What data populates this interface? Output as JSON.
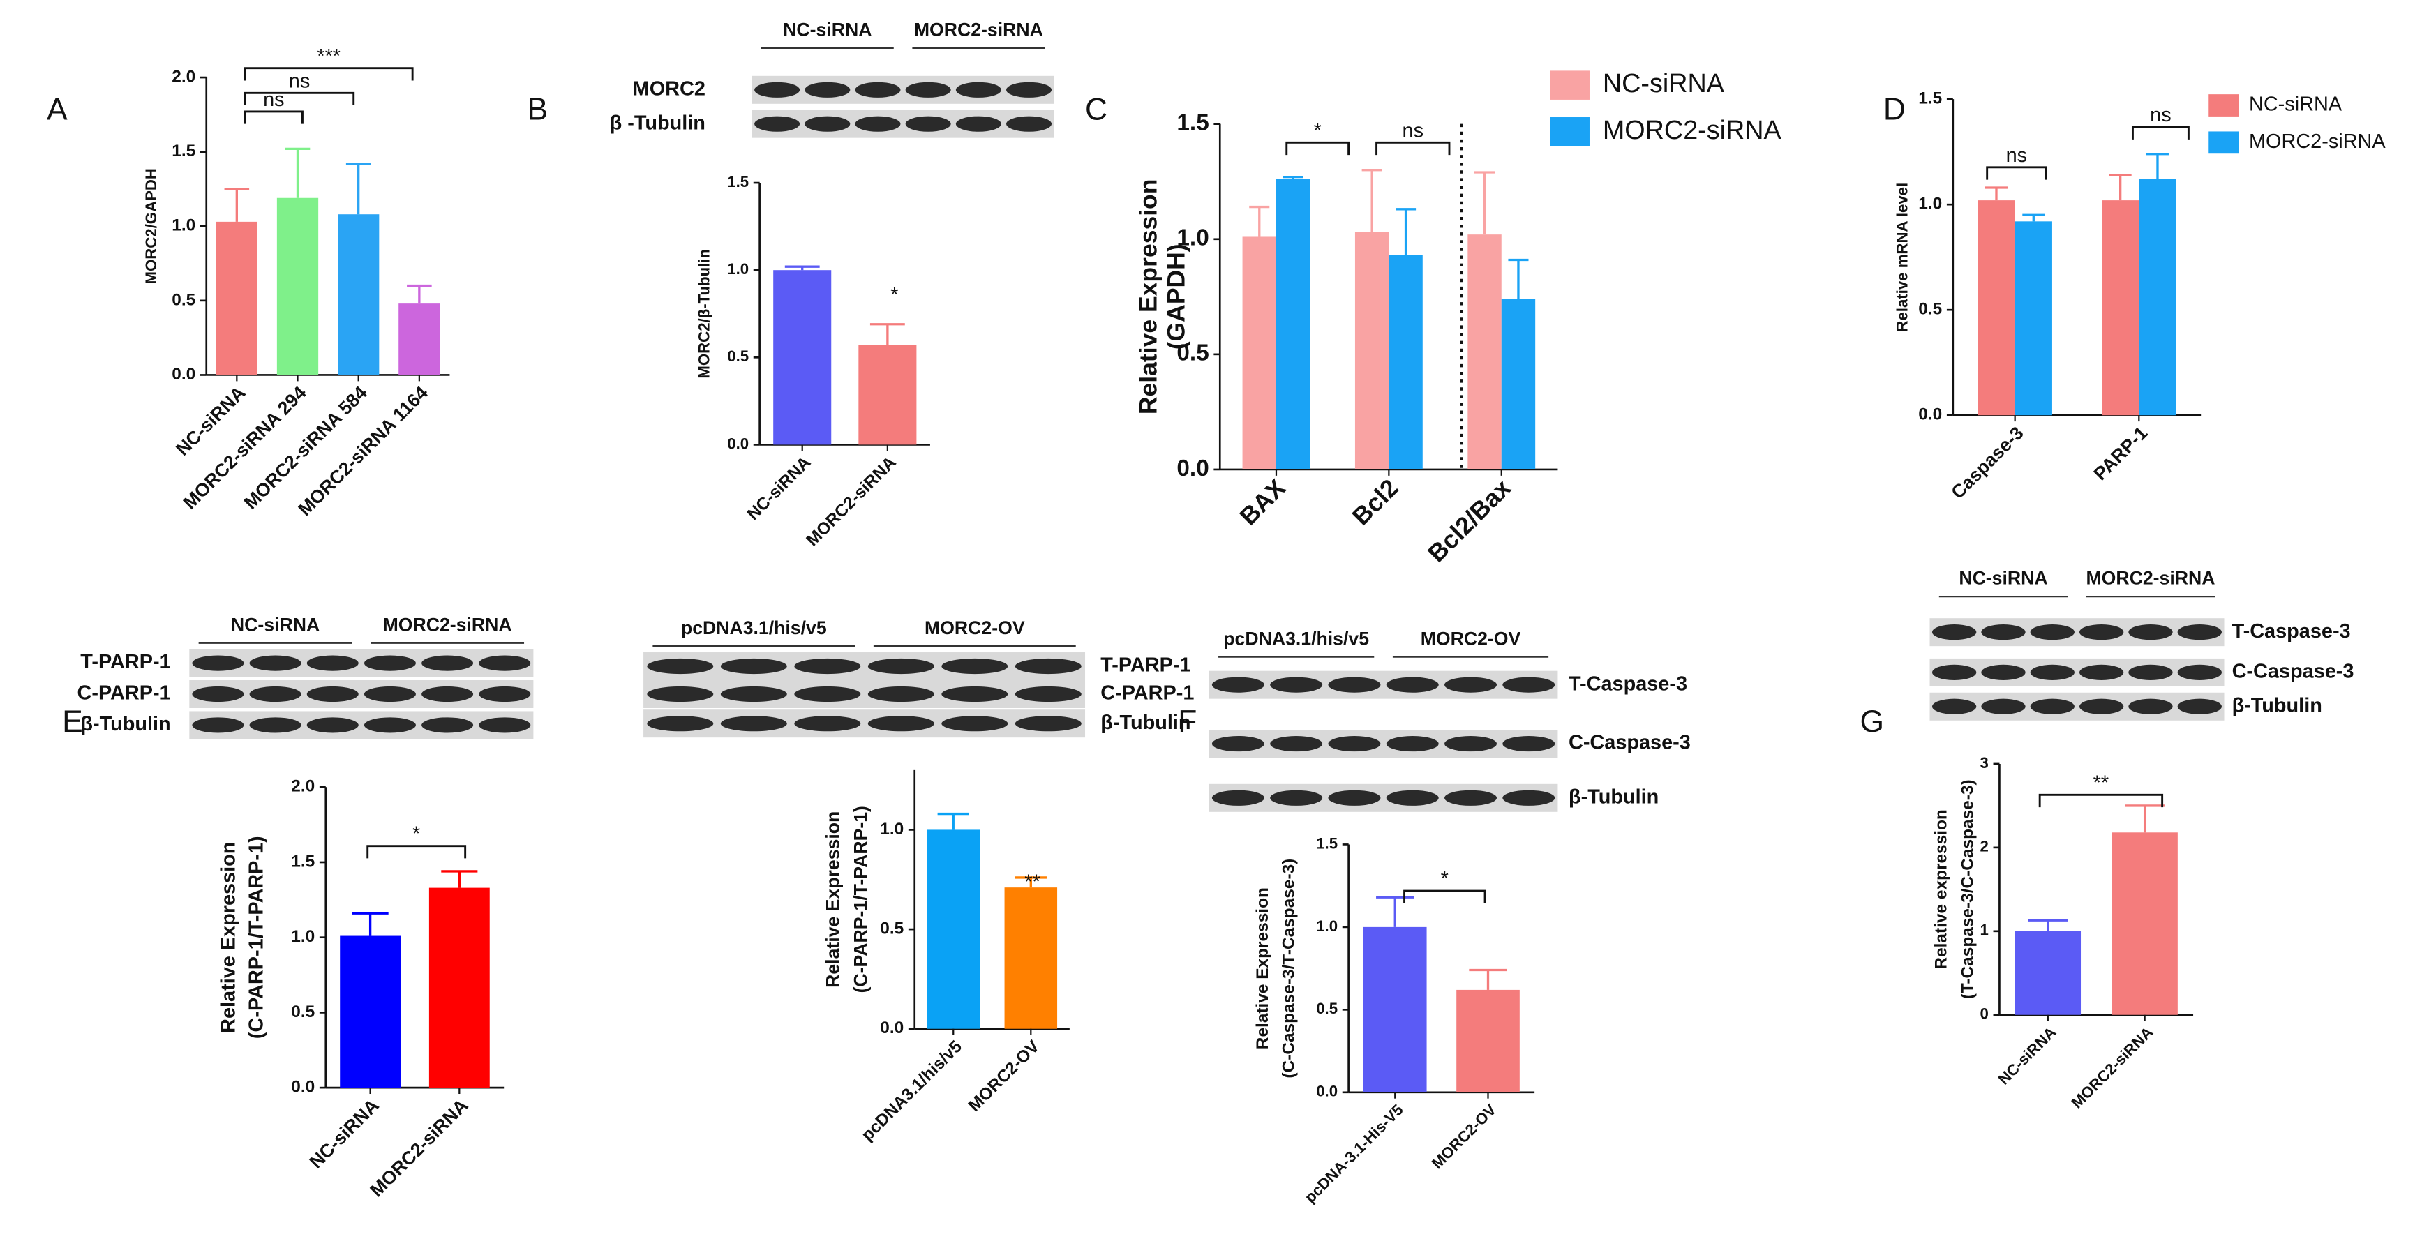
{
  "chart_data": [
    {
      "type": "bar",
      "panel": "A",
      "ylabel": [
        "MORC2/GAPDH"
      ],
      "categories": [
        "NC-siRNA",
        "MORC2-siRNA 294",
        "MORC2-siRNA 584",
        "MORC2-siRNA 1164"
      ],
      "values": [
        1.03,
        1.19,
        1.08,
        0.48
      ],
      "errors": [
        0.22,
        0.33,
        0.34,
        0.12
      ],
      "colors": [
        "#f47c7c",
        "#7ff08a",
        "#2aa4f4",
        "#cc66dd"
      ],
      "ylim": [
        0,
        2
      ],
      "yticks": [
        {
          "value": 0,
          "label": "0.0"
        },
        {
          "value": 0.5,
          "label": "0.5"
        },
        {
          "value": 1,
          "label": "1.0"
        },
        {
          "value": 1.5,
          "label": "1.5"
        },
        {
          "value": 2,
          "label": "2.0"
        }
      ],
      "annotations": [
        "ns",
        "ns",
        "***"
      ]
    },
    {
      "type": "bar",
      "panel": "B",
      "blot": {
        "groups": [
          "NC-siRNA",
          "MORC2-siRNA"
        ],
        "bands": [
          "MORC2",
          "β -Tubulin"
        ]
      },
      "ylabel": [
        "MORC2/β-Tubulin"
      ],
      "categories": [
        "NC-siRNA",
        "MORC2-siRNA"
      ],
      "values": [
        1.0,
        0.57
      ],
      "errors": [
        0.02,
        0.12
      ],
      "colors": [
        "#5b5bf5",
        "#f47c7c"
      ],
      "ylim": [
        0,
        1.5
      ],
      "yticks": [
        {
          "value": 0,
          "label": "0.0"
        },
        {
          "value": 0.5,
          "label": "0.5"
        },
        {
          "value": 1,
          "label": "1.0"
        },
        {
          "value": 1.5,
          "label": "1.5"
        }
      ],
      "annotations": [
        "*"
      ]
    },
    {
      "type": "grouped-bar",
      "panel": "C",
      "ylabel": [
        "Relative Expression",
        "(GAPDH)"
      ],
      "categories": [
        "BAX",
        "Bcl2",
        "Bcl2/Bax"
      ],
      "series": [
        {
          "name": "NC-siRNA",
          "color": "#f9a3a3",
          "values": [
            1.01,
            1.03,
            1.02
          ],
          "errors": [
            0.13,
            0.27,
            0.27
          ]
        },
        {
          "name": "MORC2-siRNA",
          "color": "#1aa3f5",
          "values": [
            1.26,
            0.93,
            0.74
          ],
          "errors": [
            0.01,
            0.2,
            0.17
          ]
        }
      ],
      "ylim": [
        0,
        1.5
      ],
      "yticks": [
        {
          "value": 0,
          "label": "0.0"
        },
        {
          "value": 0.5,
          "label": "0.5"
        },
        {
          "value": 1,
          "label": "1.0"
        },
        {
          "value": 1.5,
          "label": "1.5"
        }
      ],
      "annotations": [
        "*",
        "ns"
      ]
    },
    {
      "type": "grouped-bar",
      "panel": "D",
      "ylabel": [
        "Relative mRNA level"
      ],
      "categories": [
        "Caspase-3",
        "PARP-1"
      ],
      "series": [
        {
          "name": "NC-siRNA",
          "color": "#f47c7c",
          "values": [
            1.02,
            1.02
          ],
          "errors": [
            0.06,
            0.12
          ]
        },
        {
          "name": "MORC2-siRNA",
          "color": "#1aa3f5",
          "values": [
            0.92,
            1.12
          ],
          "errors": [
            0.03,
            0.12
          ]
        }
      ],
      "ylim": [
        0,
        1.5
      ],
      "yticks": [
        {
          "value": 0,
          "label": "0.0"
        },
        {
          "value": 0.5,
          "label": "0.5"
        },
        {
          "value": 1,
          "label": "1.0"
        },
        {
          "value": 1.5,
          "label": "1.5"
        }
      ],
      "annotations": [
        "ns",
        "ns"
      ]
    },
    {
      "type": "bar",
      "panel": "E",
      "blot": {
        "groups": [
          "NC-siRNA",
          "MORC2-siRNA"
        ],
        "bands": [
          "T-PARP-1",
          "C-PARP-1",
          "β-Tubulin"
        ]
      },
      "ylabel": [
        "Relative Expression",
        "(C-PARP-1/T-PARP-1)"
      ],
      "categories": [
        "NC-siRNA",
        "MORC2-siRNA"
      ],
      "values": [
        1.01,
        1.33
      ],
      "errors": [
        0.15,
        0.11
      ],
      "colors": [
        "#0000ff",
        "#ff0000"
      ],
      "ylim": [
        0,
        2
      ],
      "yticks": [
        {
          "value": 0,
          "label": "0.0"
        },
        {
          "value": 0.5,
          "label": "0.5"
        },
        {
          "value": 1,
          "label": "1.0"
        },
        {
          "value": 1.5,
          "label": "1.5"
        },
        {
          "value": 2,
          "label": "2.0"
        }
      ],
      "annotations": [
        "*"
      ]
    },
    {
      "type": "bar",
      "blot": {
        "groups": [
          "pcDNA3.1/his/v5",
          "MORC2-OV"
        ],
        "bands": [
          "T-PARP-1",
          "C-PARP-1",
          "β-Tubulin"
        ]
      },
      "ylabel": [
        "Relative Expression",
        "(C-PARP-1/T-PARP-1)"
      ],
      "categories": [
        "pcDNA3.1/his/v5",
        "MORC2-OV"
      ],
      "values": [
        1.0,
        0.71
      ],
      "errors": [
        0.08,
        0.05
      ],
      "colors": [
        "#0aa2f5",
        "#ff8000"
      ],
      "ylim": [
        0,
        1.3
      ],
      "yticks": [
        {
          "value": 0,
          "label": "0.0"
        },
        {
          "value": 0.5,
          "label": "0.5"
        },
        {
          "value": 1,
          "label": "1.0"
        }
      ],
      "annotations": [
        "**"
      ]
    },
    {
      "type": "bar",
      "panel": "F",
      "blot": {
        "groups": [
          "pcDNA3.1/his/v5",
          "MORC2-OV"
        ],
        "bands": [
          "T-Caspase-3",
          "C-Caspase-3",
          "β-Tubulin"
        ]
      },
      "ylabel": [
        "Relative Expression",
        "(C-Caspase-3/T-Caspase-3)"
      ],
      "categories": [
        "pcDNA-3.1-His-V5",
        "MORC2-OV"
      ],
      "values": [
        1.0,
        0.62
      ],
      "errors": [
        0.18,
        0.12
      ],
      "colors": [
        "#5b5bf5",
        "#f47c7c"
      ],
      "ylim": [
        0,
        1.5
      ],
      "yticks": [
        {
          "value": 0,
          "label": "0.0"
        },
        {
          "value": 0.5,
          "label": "0.5"
        },
        {
          "value": 1,
          "label": "1.0"
        },
        {
          "value": 1.5,
          "label": "1.5"
        }
      ],
      "annotations": [
        "*"
      ]
    },
    {
      "type": "bar",
      "panel": "G",
      "blot": {
        "groups": [
          "NC-siRNA",
          "MORC2-siRNA"
        ],
        "bands": [
          "T-Caspase-3",
          "C-Caspase-3",
          "β-Tubulin"
        ]
      },
      "ylabel": [
        "Relative expression",
        "(T-Caspase-3/C-Caspase-3)"
      ],
      "categories": [
        "NC-siRNA",
        "MORC2-siRNA"
      ],
      "values": [
        1.0,
        2.18
      ],
      "errors": [
        0.13,
        0.32
      ],
      "colors": [
        "#5b5bf5",
        "#f47c7c"
      ],
      "ylim": [
        0,
        3
      ],
      "yticks": [
        0,
        1,
        2,
        3
      ],
      "annotations": [
        "**"
      ]
    }
  ]
}
